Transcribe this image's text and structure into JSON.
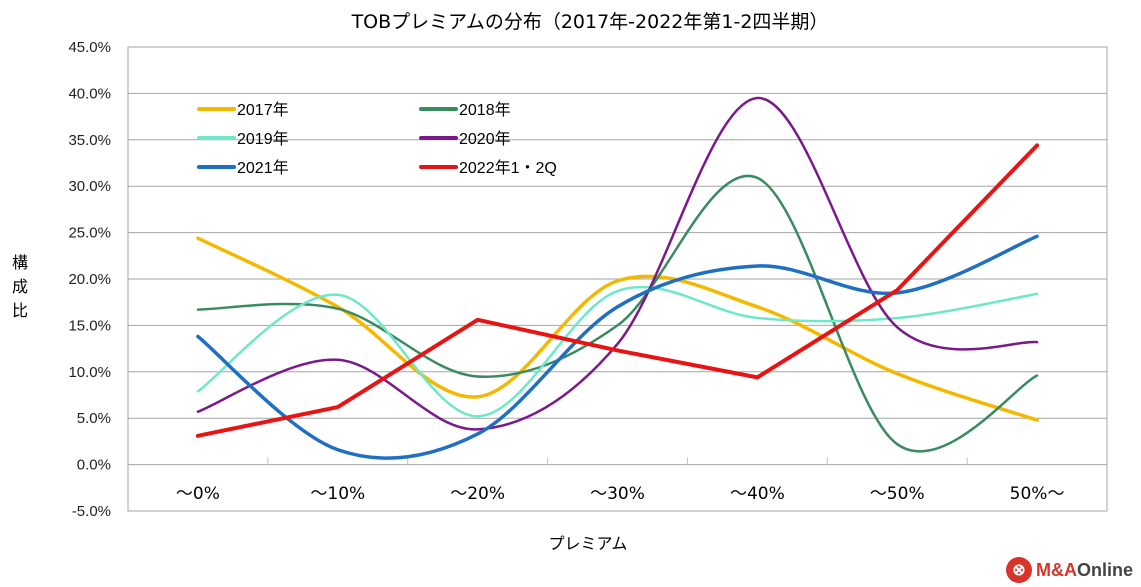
{
  "chart_data": {
    "type": "line",
    "title": "TOBプレミアムの分布（2017年-2022年第1-2四半期）",
    "xlabel": "プレミアム",
    "ylabel": "構成比",
    "ylim": [
      -5,
      45
    ],
    "yticks": [
      45,
      40,
      35,
      30,
      25,
      20,
      15,
      10,
      5,
      0,
      -5
    ],
    "ytick_labels": [
      "45.0%",
      "40.0%",
      "35.0%",
      "30.0%",
      "25.0%",
      "20.0%",
      "15.0%",
      "10.0%",
      "5.0%",
      "0.0%",
      "-5.0%"
    ],
    "categories": [
      "〜0%",
      "〜10%",
      "〜20%",
      "〜30%",
      "〜40%",
      "〜50%",
      "50%〜"
    ],
    "grid": true,
    "legend_position": "top-left",
    "series": [
      {
        "name": "2017年",
        "color": "#f5b800",
        "smooth": true,
        "values": [
          24.4,
          17.0,
          7.3,
          19.8,
          17.0,
          9.8,
          4.8
        ]
      },
      {
        "name": "2018年",
        "color": "#3a8a5f",
        "smooth": true,
        "values": [
          16.7,
          16.8,
          9.5,
          15.0,
          30.9,
          2.2,
          9.6
        ]
      },
      {
        "name": "2019年",
        "color": "#6ee8c8",
        "smooth": true,
        "values": [
          7.9,
          18.3,
          5.2,
          18.7,
          15.8,
          15.8,
          18.4
        ]
      },
      {
        "name": "2020年",
        "color": "#7a1a8a",
        "smooth": true,
        "values": [
          5.7,
          11.3,
          3.8,
          13.0,
          39.5,
          14.8,
          13.2
        ]
      },
      {
        "name": "2021年",
        "color": "#1f6fc2",
        "smooth": true,
        "values": [
          13.8,
          1.6,
          3.3,
          17.0,
          21.4,
          18.5,
          24.6
        ]
      },
      {
        "name": "2022年1・2Q",
        "color": "#e81414",
        "smooth": false,
        "values": [
          3.1,
          6.2,
          15.6,
          12.3,
          9.4,
          18.8,
          34.4
        ]
      }
    ]
  },
  "logo": {
    "mark": "⊗",
    "brand": "M&A",
    "suffix": "Online"
  }
}
